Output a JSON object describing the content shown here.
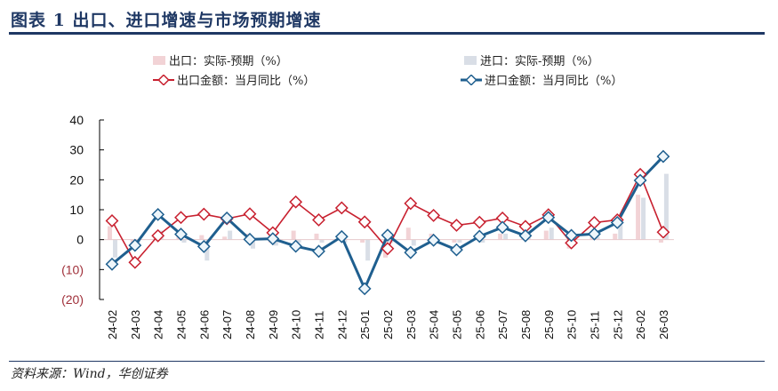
{
  "title": "图表 1   出口、进口增速与市场预期增速",
  "source": "资料来源：Wind，华创证券",
  "chart_data": {
    "type": "line",
    "categories": [
      "24-02",
      "24-03",
      "24-04",
      "24-05",
      "24-06",
      "24-07",
      "24-08",
      "24-09",
      "24-10",
      "24-11",
      "24-12",
      "25-01",
      "25-02",
      "25-03",
      "25-04",
      "25-05",
      "25-06",
      "25-07",
      "25-08",
      "25-09",
      "25-10",
      "25-11",
      "25-12",
      "26-02",
      "26-03"
    ],
    "ylim": [
      -20,
      40
    ],
    "yticks": [
      {
        "v": 40,
        "label": "40"
      },
      {
        "v": 30,
        "label": "30"
      },
      {
        "v": 20,
        "label": "20"
      },
      {
        "v": 10,
        "label": "10"
      },
      {
        "v": 0,
        "label": "0"
      },
      {
        "v": -10,
        "label": "(10)"
      },
      {
        "v": -20,
        "label": "(20)"
      }
    ],
    "series": [
      {
        "name": "出口：实际-预期（%）",
        "kind": "bar",
        "color": "#f2d3d6",
        "values": [
          4.5,
          -2,
          1,
          2,
          1.5,
          1,
          2,
          -1,
          3,
          2,
          1,
          -1,
          -6,
          4,
          2,
          -1,
          1,
          2,
          0.5,
          3,
          -3,
          1,
          2,
          15,
          -1
        ]
      },
      {
        "name": "进口：实际-预期（%）",
        "kind": "bar",
        "color": "#d9dee6",
        "values": [
          -6,
          -1,
          3,
          -1,
          -7,
          3,
          -3,
          -2,
          -1,
          -1,
          -1,
          -7,
          -1,
          -2,
          -1,
          -1,
          -1,
          2,
          1,
          4,
          1,
          1,
          5,
          14,
          22
        ]
      },
      {
        "name": "出口金额：当月同比（%）",
        "kind": "line",
        "color": "#c8202f",
        "values": [
          6.3,
          -7.6,
          1.3,
          7.4,
          8.5,
          7.0,
          8.6,
          2.3,
          12.6,
          6.6,
          10.6,
          5.9,
          -3.0,
          12.1,
          8.1,
          4.8,
          5.8,
          7.2,
          4.4,
          8.3,
          -1.1,
          5.7,
          6.6,
          21.8,
          2.5
        ]
      },
      {
        "name": "进口金额：当月同比（%）",
        "kind": "line",
        "color": "#1f5f8f",
        "values": [
          -8.2,
          -1.9,
          8.4,
          1.8,
          -2.3,
          7.2,
          0.1,
          0.3,
          -2.2,
          -3.9,
          1.0,
          -16.4,
          1.5,
          -4.3,
          -0.2,
          -3.4,
          1.1,
          4.1,
          1.3,
          7.4,
          1.4,
          1.9,
          5.7,
          19.8,
          27.8
        ]
      }
    ]
  }
}
